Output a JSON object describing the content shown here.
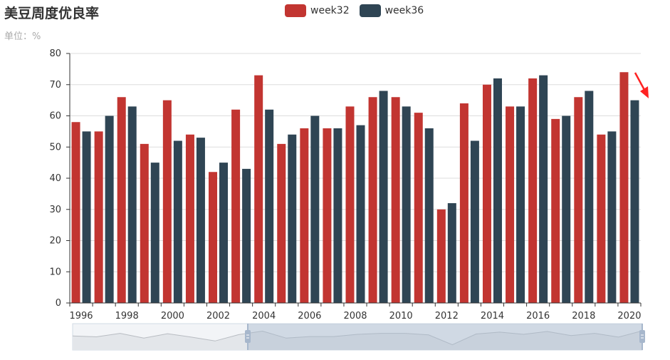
{
  "title": "美豆周度优良率",
  "subtitle": "单位：%",
  "colors": {
    "week32": "#c23531",
    "week36": "#2f4554",
    "grid": "#dddddd",
    "axis": "#333333"
  },
  "chart_data": {
    "type": "bar",
    "categories": [
      "1996",
      "1997",
      "1998",
      "1999",
      "2000",
      "2001",
      "2002",
      "2003",
      "2004",
      "2005",
      "2006",
      "2007",
      "2008",
      "2009",
      "2010",
      "2011",
      "2012",
      "2013",
      "2014",
      "2015",
      "2016",
      "2017",
      "2018",
      "2019",
      "2020"
    ],
    "series": [
      {
        "name": "week32",
        "values": [
          58,
          55,
          66,
          51,
          65,
          54,
          42,
          62,
          73,
          51,
          56,
          56,
          63,
          66,
          66,
          61,
          30,
          64,
          70,
          63,
          72,
          59,
          66,
          54,
          74
        ]
      },
      {
        "name": "week36",
        "values": [
          55,
          60,
          63,
          45,
          52,
          53,
          45,
          43,
          62,
          54,
          60,
          56,
          57,
          68,
          63,
          56,
          32,
          52,
          72,
          63,
          73,
          60,
          68,
          55,
          65
        ]
      }
    ],
    "xlabels_shown": [
      "1996",
      "1998",
      "2000",
      "2002",
      "2004",
      "2006",
      "2008",
      "2010",
      "2012",
      "2014",
      "2016",
      "2018",
      "2020"
    ],
    "ylim": [
      0,
      80
    ],
    "yticks": [
      0,
      10,
      20,
      30,
      40,
      50,
      60,
      70,
      80
    ],
    "grid": true,
    "legend": "top-center"
  }
}
